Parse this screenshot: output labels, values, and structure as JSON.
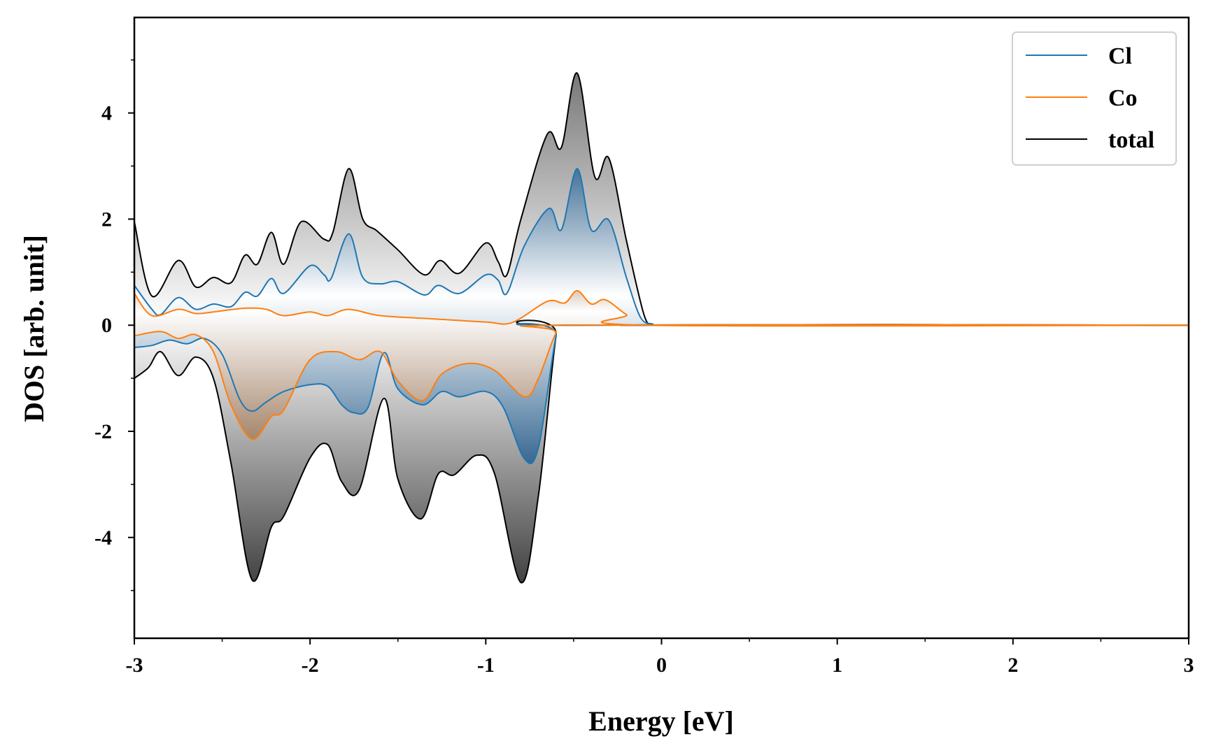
{
  "chart_data": {
    "type": "line",
    "xlabel": "Energy [eV]",
    "ylabel": "DOS [arb. unit]",
    "xlim": [
      -3,
      3
    ],
    "ylim": [
      -5.9,
      5.8
    ],
    "x_ticks": [
      -3,
      -2,
      -1,
      0,
      1,
      2,
      3
    ],
    "x_tick_labels": [
      "-3",
      "-2",
      "-1",
      "0",
      "1",
      "2",
      "3"
    ],
    "y_ticks": [
      -4,
      -2,
      0,
      2,
      4
    ],
    "y_tick_labels": [
      "-4",
      "-2",
      "0",
      "2",
      "4"
    ],
    "grid": false,
    "legend_position": "top-right",
    "series": [
      {
        "name": "Cl",
        "color": "#1f77b4",
        "up": [
          [
            -3.0,
            0.75
          ],
          [
            -2.9,
            0.3
          ],
          [
            -2.85,
            0.2
          ],
          [
            -2.75,
            0.52
          ],
          [
            -2.65,
            0.3
          ],
          [
            -2.55,
            0.4
          ],
          [
            -2.45,
            0.35
          ],
          [
            -2.37,
            0.62
          ],
          [
            -2.3,
            0.55
          ],
          [
            -2.22,
            0.88
          ],
          [
            -2.15,
            0.6
          ],
          [
            -2.0,
            1.12
          ],
          [
            -1.92,
            0.95
          ],
          [
            -1.88,
            0.88
          ],
          [
            -1.78,
            1.72
          ],
          [
            -1.7,
            0.9
          ],
          [
            -1.6,
            0.78
          ],
          [
            -1.5,
            0.82
          ],
          [
            -1.35,
            0.57
          ],
          [
            -1.27,
            0.75
          ],
          [
            -1.15,
            0.6
          ],
          [
            -1.0,
            0.95
          ],
          [
            -0.93,
            0.85
          ],
          [
            -0.88,
            0.6
          ],
          [
            -0.78,
            1.5
          ],
          [
            -0.64,
            2.2
          ],
          [
            -0.57,
            1.8
          ],
          [
            -0.48,
            2.95
          ],
          [
            -0.4,
            1.8
          ],
          [
            -0.3,
            1.98
          ],
          [
            -0.2,
            0.9
          ],
          [
            -0.12,
            0.15
          ],
          [
            -0.05,
            0.02
          ],
          [
            0.0,
            0.0
          ],
          [
            3.0,
            0.0
          ]
        ],
        "down": [
          [
            -3.0,
            -0.42
          ],
          [
            -2.9,
            -0.38
          ],
          [
            -2.8,
            -0.28
          ],
          [
            -2.7,
            -0.35
          ],
          [
            -2.6,
            -0.25
          ],
          [
            -2.5,
            -0.55
          ],
          [
            -2.4,
            -1.4
          ],
          [
            -2.33,
            -1.62
          ],
          [
            -2.25,
            -1.45
          ],
          [
            -2.15,
            -1.25
          ],
          [
            -2.0,
            -1.12
          ],
          [
            -1.9,
            -1.15
          ],
          [
            -1.82,
            -1.5
          ],
          [
            -1.75,
            -1.65
          ],
          [
            -1.67,
            -1.55
          ],
          [
            -1.58,
            -0.52
          ],
          [
            -1.5,
            -1.2
          ],
          [
            -1.36,
            -1.5
          ],
          [
            -1.25,
            -1.25
          ],
          [
            -1.15,
            -1.35
          ],
          [
            -1.0,
            -1.25
          ],
          [
            -0.9,
            -1.55
          ],
          [
            -0.78,
            -2.52
          ],
          [
            -0.7,
            -2.3
          ],
          [
            -0.6,
            -0.2
          ],
          [
            -0.55,
            0.0
          ],
          [
            3.0,
            0.0
          ]
        ]
      },
      {
        "name": "Co",
        "color": "#ff7f0e",
        "up": [
          [
            -3.0,
            0.6
          ],
          [
            -2.9,
            0.18
          ],
          [
            -2.75,
            0.3
          ],
          [
            -2.65,
            0.22
          ],
          [
            -2.55,
            0.25
          ],
          [
            -2.37,
            0.32
          ],
          [
            -2.25,
            0.3
          ],
          [
            -2.15,
            0.18
          ],
          [
            -2.0,
            0.25
          ],
          [
            -1.9,
            0.18
          ],
          [
            -1.78,
            0.3
          ],
          [
            -1.6,
            0.18
          ],
          [
            -1.3,
            0.12
          ],
          [
            -1.0,
            0.06
          ],
          [
            -0.85,
            0.05
          ],
          [
            -0.65,
            0.45
          ],
          [
            -0.55,
            0.42
          ],
          [
            -0.48,
            0.65
          ],
          [
            -0.4,
            0.4
          ],
          [
            -0.32,
            0.48
          ],
          [
            -0.2,
            0.2
          ],
          [
            -0.08,
            0.0
          ],
          [
            3.0,
            0.0
          ]
        ],
        "down": [
          [
            -3.0,
            -0.2
          ],
          [
            -2.85,
            -0.12
          ],
          [
            -2.75,
            -0.25
          ],
          [
            -2.65,
            -0.18
          ],
          [
            -2.55,
            -0.5
          ],
          [
            -2.45,
            -1.5
          ],
          [
            -2.33,
            -2.15
          ],
          [
            -2.22,
            -1.72
          ],
          [
            -2.15,
            -1.6
          ],
          [
            -2.0,
            -0.65
          ],
          [
            -1.85,
            -0.5
          ],
          [
            -1.72,
            -0.65
          ],
          [
            -1.6,
            -0.5
          ],
          [
            -1.5,
            -1.05
          ],
          [
            -1.36,
            -1.42
          ],
          [
            -1.25,
            -0.92
          ],
          [
            -1.1,
            -0.72
          ],
          [
            -0.95,
            -0.85
          ],
          [
            -0.78,
            -1.35
          ],
          [
            -0.7,
            -1.0
          ],
          [
            -0.6,
            -0.15
          ],
          [
            -0.52,
            0.0
          ],
          [
            3.0,
            0.0
          ]
        ]
      },
      {
        "name": "total",
        "color": "#000000",
        "up": [
          [
            -3.0,
            1.95
          ],
          [
            -2.9,
            0.55
          ],
          [
            -2.75,
            1.22
          ],
          [
            -2.65,
            0.72
          ],
          [
            -2.55,
            0.9
          ],
          [
            -2.45,
            0.8
          ],
          [
            -2.37,
            1.32
          ],
          [
            -2.3,
            1.15
          ],
          [
            -2.22,
            1.75
          ],
          [
            -2.15,
            1.15
          ],
          [
            -2.05,
            1.95
          ],
          [
            -1.92,
            1.62
          ],
          [
            -1.87,
            1.75
          ],
          [
            -1.78,
            2.95
          ],
          [
            -1.7,
            2.0
          ],
          [
            -1.62,
            1.78
          ],
          [
            -1.5,
            1.42
          ],
          [
            -1.35,
            0.95
          ],
          [
            -1.26,
            1.22
          ],
          [
            -1.15,
            0.98
          ],
          [
            -1.0,
            1.55
          ],
          [
            -0.93,
            1.2
          ],
          [
            -0.88,
            0.95
          ],
          [
            -0.8,
            2.0
          ],
          [
            -0.65,
            3.6
          ],
          [
            -0.57,
            3.35
          ],
          [
            -0.48,
            4.75
          ],
          [
            -0.38,
            2.8
          ],
          [
            -0.3,
            3.15
          ],
          [
            -0.2,
            1.6
          ],
          [
            -0.1,
            0.2
          ],
          [
            -0.05,
            0.02
          ],
          [
            0.0,
            0.0
          ],
          [
            3.0,
            0.0
          ]
        ],
        "down": [
          [
            -3.0,
            -1.0
          ],
          [
            -2.92,
            -0.8
          ],
          [
            -2.85,
            -0.5
          ],
          [
            -2.75,
            -0.95
          ],
          [
            -2.65,
            -0.6
          ],
          [
            -2.55,
            -1.0
          ],
          [
            -2.45,
            -2.6
          ],
          [
            -2.33,
            -4.8
          ],
          [
            -2.22,
            -3.8
          ],
          [
            -2.15,
            -3.6
          ],
          [
            -2.0,
            -2.5
          ],
          [
            -1.9,
            -2.25
          ],
          [
            -1.82,
            -2.95
          ],
          [
            -1.72,
            -3.1
          ],
          [
            -1.58,
            -1.38
          ],
          [
            -1.5,
            -2.9
          ],
          [
            -1.37,
            -3.65
          ],
          [
            -1.27,
            -2.8
          ],
          [
            -1.18,
            -2.82
          ],
          [
            -1.05,
            -2.45
          ],
          [
            -0.95,
            -2.8
          ],
          [
            -0.8,
            -4.85
          ],
          [
            -0.7,
            -3.2
          ],
          [
            -0.6,
            -0.2
          ],
          [
            -0.55,
            0.0
          ],
          [
            3.0,
            0.0
          ]
        ]
      }
    ]
  }
}
